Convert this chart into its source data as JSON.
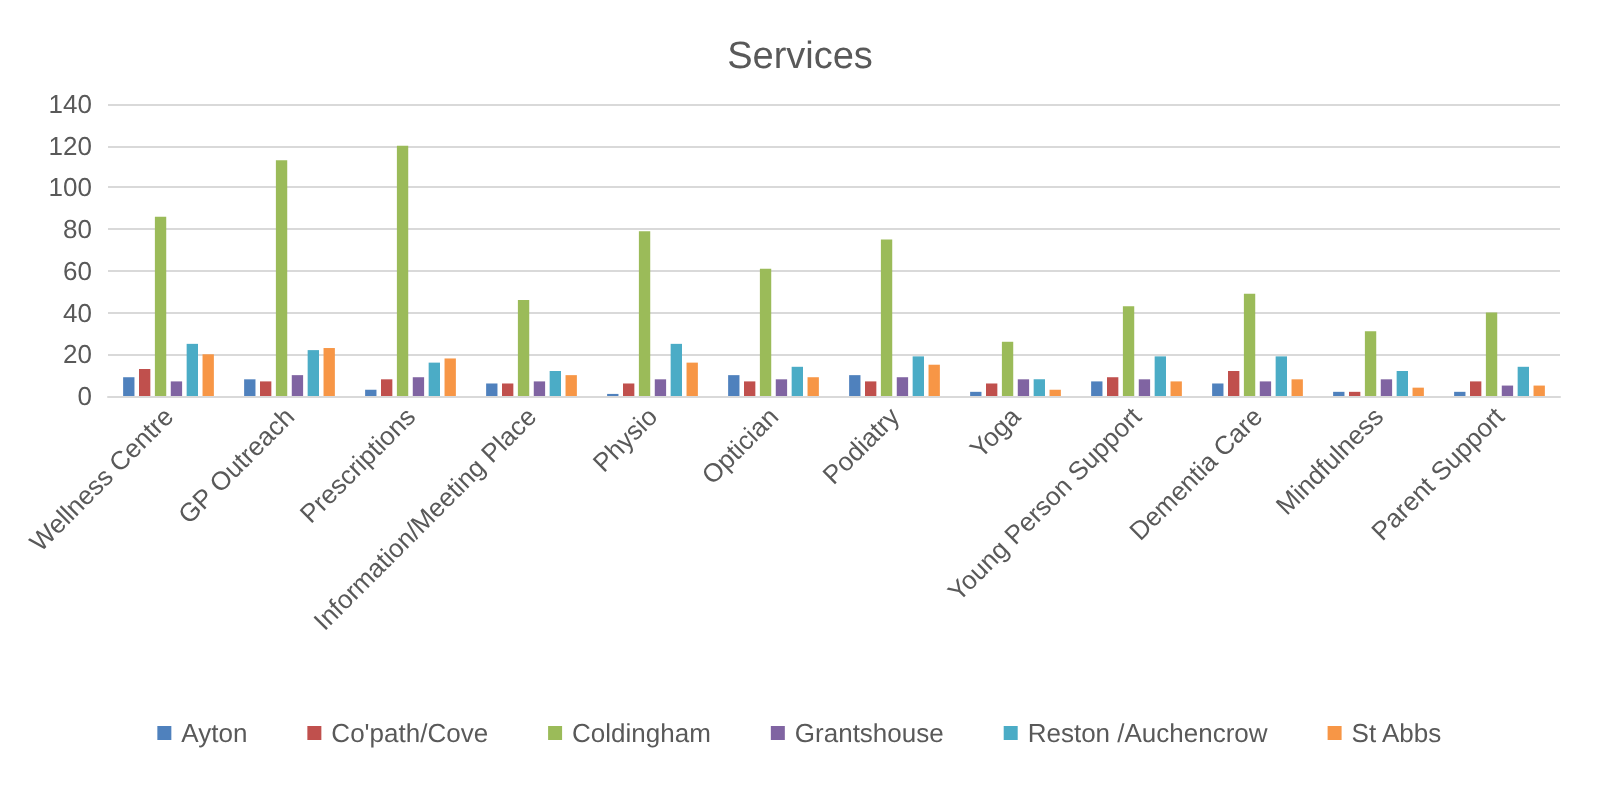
{
  "chart_data": {
    "type": "bar",
    "title": "Services",
    "categories": [
      "Wellness Centre",
      "GP Outreach",
      "Prescriptions",
      "Information/Meeting Place",
      "Physio",
      "Optician",
      "Podiatry",
      "Yoga",
      "Young Person Support",
      "Dementia Care",
      "Mindfulness",
      "Parent Support"
    ],
    "series": [
      {
        "name": "Ayton",
        "color": "#4f81bd",
        "values": [
          9,
          8,
          3,
          6,
          1,
          10,
          10,
          2,
          7,
          6,
          2,
          2
        ]
      },
      {
        "name": "Co'path/Cove",
        "color": "#c0504d",
        "values": [
          13,
          7,
          8,
          6,
          6,
          7,
          7,
          6,
          9,
          12,
          2,
          7
        ]
      },
      {
        "name": "Coldingham",
        "color": "#9bbb59",
        "values": [
          86,
          113,
          120,
          46,
          79,
          61,
          75,
          26,
          43,
          49,
          31,
          40
        ]
      },
      {
        "name": "Grantshouse",
        "color": "#8064a2",
        "values": [
          7,
          10,
          9,
          7,
          8,
          8,
          9,
          8,
          8,
          7,
          8,
          5
        ]
      },
      {
        "name": "Reston /Auchencrow",
        "color": "#4bacc6",
        "values": [
          25,
          22,
          16,
          12,
          25,
          14,
          19,
          8,
          19,
          19,
          12,
          14
        ]
      },
      {
        "name": "St Abbs",
        "color": "#f79646",
        "values": [
          20,
          23,
          18,
          10,
          16,
          9,
          15,
          3,
          7,
          8,
          4,
          5
        ]
      }
    ],
    "ylim": [
      0,
      140
    ],
    "yticks": [
      0,
      20,
      40,
      60,
      80,
      100,
      120,
      140
    ],
    "grid": "y",
    "legend": "bottom"
  }
}
